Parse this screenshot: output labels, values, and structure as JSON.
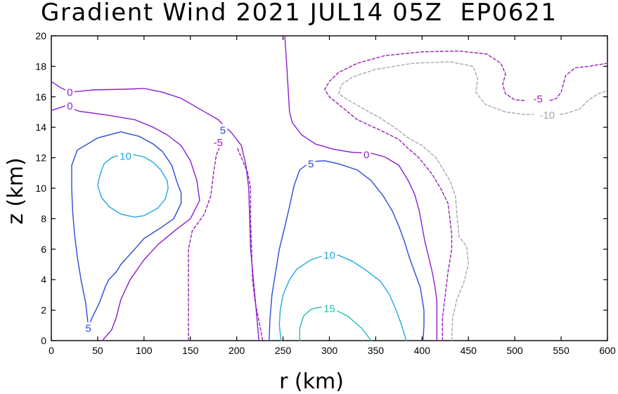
{
  "chart_data": {
    "type": "contour",
    "title": "Gradient Wind 2021 JUL14 05Z  EP0621",
    "xlabel": "r (km)",
    "ylabel": "z (km)",
    "xlim": [
      0,
      600
    ],
    "ylim": [
      0,
      20
    ],
    "xticks": [
      "0",
      "50",
      "100",
      "150",
      "200",
      "250",
      "300",
      "350",
      "400",
      "450",
      "500",
      "550",
      "600"
    ],
    "yticks": [
      "0",
      "2",
      "4",
      "6",
      "8",
      "10",
      "12",
      "14",
      "16",
      "18",
      "20"
    ],
    "grid": false,
    "colors": {
      "neg10": "#a8a8a8",
      "neg5": "#9a1fb8",
      "zero": "#8a1fd0",
      "pos5": "#2c4ad8",
      "pos10": "#22a8e0",
      "pos15": "#20c0b0"
    },
    "contours": [
      {
        "level": 0,
        "label": "0",
        "color_key": "zero",
        "dashed": false,
        "points": [
          [
            0,
            17
          ],
          [
            10,
            16.6
          ],
          [
            20,
            16.3
          ],
          [
            45,
            16.45
          ],
          [
            80,
            16.5
          ],
          [
            100,
            16.55
          ],
          [
            120,
            16.3
          ],
          [
            140,
            15.9
          ],
          [
            160,
            15.2
          ],
          [
            180,
            14.5
          ],
          [
            195,
            13.6
          ],
          [
            205,
            12.8
          ],
          [
            210,
            11.5
          ],
          [
            213,
            10
          ],
          [
            214,
            8
          ],
          [
            215,
            6
          ],
          [
            218,
            4
          ],
          [
            221,
            2
          ],
          [
            224,
            0
          ]
        ]
      },
      {
        "level": 0,
        "label": "0",
        "color_key": "zero",
        "dashed": false,
        "points": [
          [
            0,
            15.1
          ],
          [
            15,
            15.4
          ],
          [
            30,
            15.05
          ],
          [
            60,
            14.8
          ],
          [
            90,
            14.5
          ],
          [
            110,
            14
          ],
          [
            125,
            13.5
          ],
          [
            140,
            12.8
          ],
          [
            150,
            11.8
          ],
          [
            157,
            10.5
          ],
          [
            160,
            9.2
          ],
          [
            150,
            8
          ],
          [
            135,
            7.3
          ],
          [
            115,
            6.3
          ],
          [
            100,
            5.3
          ],
          [
            85,
            4
          ],
          [
            75,
            2.7
          ],
          [
            70,
            1.5
          ],
          [
            65,
            0.7
          ],
          [
            55,
            0
          ]
        ]
      },
      {
        "level": 0,
        "label": "0",
        "color_key": "zero",
        "dashed": false,
        "points": [
          [
            252,
            20
          ],
          [
            253,
            19
          ],
          [
            254,
            18
          ],
          [
            255,
            17
          ],
          [
            256,
            16
          ],
          [
            257,
            15
          ],
          [
            260,
            14.3
          ],
          [
            270,
            13.5
          ],
          [
            285,
            12.9
          ],
          [
            305,
            12.55
          ],
          [
            325,
            12.35
          ],
          [
            345,
            12.3
          ],
          [
            360,
            12.05
          ],
          [
            375,
            11.5
          ],
          [
            385,
            10.5
          ],
          [
            392,
            9.6
          ],
          [
            397,
            8.5
          ],
          [
            400,
            7.5
          ],
          [
            403,
            6.5
          ],
          [
            407,
            5.5
          ],
          [
            411,
            4.5
          ],
          [
            414,
            3.5
          ],
          [
            416,
            2.6
          ],
          [
            416,
            2
          ],
          [
            416,
            1
          ],
          [
            416,
            0
          ]
        ]
      },
      {
        "level": 5,
        "label": "5",
        "color_key": "pos5",
        "dashed": false,
        "points": [
          [
            40,
            0.9
          ],
          [
            37,
            2.5
          ],
          [
            32,
            4
          ],
          [
            28,
            5.5
          ],
          [
            25,
            7
          ],
          [
            23,
            8.5
          ],
          [
            22,
            10
          ],
          [
            22,
            11.5
          ],
          [
            28,
            12.5
          ],
          [
            50,
            13.3
          ],
          [
            75,
            13.7
          ],
          [
            95,
            13.4
          ],
          [
            110,
            12.9
          ],
          [
            120,
            12.4
          ],
          [
            130,
            11.5
          ],
          [
            135,
            10.5
          ],
          [
            140,
            9.7
          ],
          [
            140,
            9
          ],
          [
            132,
            8
          ],
          [
            118,
            7.4
          ],
          [
            100,
            6.7
          ],
          [
            90,
            6
          ],
          [
            75,
            5
          ],
          [
            70,
            4.5
          ],
          [
            62,
            4
          ],
          [
            58,
            3.5
          ],
          [
            52,
            2.5
          ],
          [
            44,
            1.5
          ],
          [
            40,
            0.9
          ]
        ]
      },
      {
        "level": 5,
        "label": "5",
        "color_key": "pos5",
        "dashed": false,
        "points": [
          [
            235,
            0
          ],
          [
            236,
            1.5
          ],
          [
            238,
            3
          ],
          [
            242,
            4.5
          ],
          [
            246,
            6
          ],
          [
            252,
            7.5
          ],
          [
            257,
            8.8
          ],
          [
            262,
            10.2
          ],
          [
            268,
            11.2
          ],
          [
            280,
            11.75
          ],
          [
            295,
            11.8
          ],
          [
            310,
            11.6
          ],
          [
            330,
            11.2
          ],
          [
            345,
            10.5
          ],
          [
            358,
            9.5
          ],
          [
            368,
            8.5
          ],
          [
            375,
            7.5
          ],
          [
            381,
            6.5
          ],
          [
            386,
            5.5
          ],
          [
            392,
            4.5
          ],
          [
            398,
            3.5
          ],
          [
            402,
            2
          ],
          [
            402,
            1
          ],
          [
            401,
            0
          ]
        ]
      },
      {
        "level": 10,
        "label": "10",
        "color_key": "pos10",
        "dashed": false,
        "points": [
          [
            50,
            10.2
          ],
          [
            53,
            11
          ],
          [
            57,
            11.6
          ],
          [
            65,
            12
          ],
          [
            75,
            12.2
          ],
          [
            85,
            12.25
          ],
          [
            100,
            12.05
          ],
          [
            110,
            11.7
          ],
          [
            118,
            11.2
          ],
          [
            125,
            10.5
          ],
          [
            126,
            10
          ],
          [
            123,
            9.3
          ],
          [
            115,
            8.7
          ],
          [
            100,
            8.2
          ],
          [
            90,
            8.1
          ],
          [
            75,
            8.3
          ],
          [
            62,
            8.8
          ],
          [
            54,
            9.4
          ],
          [
            50,
            10.2
          ]
        ]
      },
      {
        "level": 10,
        "label": "10",
        "color_key": "pos10",
        "dashed": false,
        "points": [
          [
            248,
            0
          ],
          [
            246,
            1
          ],
          [
            247,
            2
          ],
          [
            250,
            3
          ],
          [
            257,
            4
          ],
          [
            265,
            4.7
          ],
          [
            280,
            5.3
          ],
          [
            295,
            5.6
          ],
          [
            310,
            5.6
          ],
          [
            325,
            5.2
          ],
          [
            340,
            4.6
          ],
          [
            355,
            3.9
          ],
          [
            365,
            3
          ],
          [
            372,
            2
          ],
          [
            378,
            1
          ],
          [
            383,
            0
          ]
        ]
      },
      {
        "level": 15,
        "label": "15",
        "color_key": "pos15",
        "dashed": false,
        "points": [
          [
            268,
            0
          ],
          [
            268,
            0.8
          ],
          [
            272,
            1.6
          ],
          [
            280,
            2.05
          ],
          [
            290,
            2.2
          ],
          [
            305,
            2.05
          ],
          [
            320,
            1.6
          ],
          [
            335,
            0.8
          ],
          [
            345,
            0
          ]
        ]
      },
      {
        "level": -5,
        "label": "-5",
        "color_key": "neg5",
        "dashed": true,
        "points": [
          [
            148,
            0
          ],
          [
            148,
            3
          ],
          [
            148,
            6
          ],
          [
            152,
            7.2
          ],
          [
            165,
            8.3
          ],
          [
            172,
            9.5
          ],
          [
            175,
            11
          ],
          [
            178,
            12.2
          ],
          [
            181,
            12.6
          ]
        ]
      },
      {
        "level": -5,
        "label": "-5",
        "color_key": "neg5",
        "dashed": true,
        "points": [
          [
            201,
            12.6
          ],
          [
            205,
            12
          ],
          [
            212,
            11
          ],
          [
            215,
            10
          ],
          [
            215,
            8
          ],
          [
            216,
            6
          ],
          [
            217,
            4
          ],
          [
            220,
            2.5
          ],
          [
            225,
            1
          ],
          [
            228,
            0
          ]
        ]
      },
      {
        "level": -5,
        "label": "-5",
        "color_key": "neg5",
        "dashed": true,
        "points": [
          [
            422,
            0
          ],
          [
            422,
            1.5
          ],
          [
            425,
            3
          ],
          [
            428,
            4.5
          ],
          [
            432,
            6
          ],
          [
            432,
            7
          ],
          [
            430,
            8
          ],
          [
            428,
            9
          ],
          [
            420,
            10
          ],
          [
            410,
            11
          ],
          [
            395,
            12.1
          ],
          [
            385,
            12.6
          ],
          [
            375,
            13.2
          ],
          [
            355,
            13.8
          ],
          [
            330,
            14.5
          ],
          [
            310,
            15.5
          ],
          [
            300,
            16
          ],
          [
            295,
            16.5
          ],
          [
            300,
            17
          ],
          [
            310,
            17.6
          ],
          [
            330,
            18.2
          ],
          [
            360,
            18.7
          ],
          [
            400,
            18.95
          ],
          [
            440,
            19
          ],
          [
            470,
            18.8
          ],
          [
            485,
            18.2
          ],
          [
            490,
            17.5
          ],
          [
            487,
            16.8
          ],
          [
            490,
            16.2
          ],
          [
            500,
            15.8
          ],
          [
            510,
            15.75
          ]
        ]
      },
      {
        "level": -5,
        "label": "-5",
        "color_key": "neg5",
        "dashed": true,
        "points": [
          [
            538,
            15.75
          ],
          [
            545,
            15.9
          ],
          [
            550,
            16.3
          ],
          [
            555,
            17.4
          ],
          [
            565,
            17.9
          ],
          [
            580,
            18
          ],
          [
            600,
            18.2
          ]
        ]
      },
      {
        "level": -10,
        "label": "-10",
        "color_key": "neg10",
        "dashed": true,
        "points": [
          [
            432,
            0
          ],
          [
            433,
            1.5
          ],
          [
            438,
            2.8
          ],
          [
            445,
            3.8
          ],
          [
            450,
            5
          ],
          [
            448,
            6.2
          ],
          [
            440,
            6.8
          ],
          [
            438,
            8
          ],
          [
            436,
            9.5
          ],
          [
            430,
            10.5
          ],
          [
            425,
            11
          ],
          [
            415,
            12
          ],
          [
            400,
            12.8
          ],
          [
            385,
            13.3
          ],
          [
            370,
            14
          ],
          [
            355,
            14.6
          ],
          [
            340,
            15.1
          ],
          [
            320,
            15.8
          ],
          [
            310,
            16.2
          ],
          [
            313,
            16.8
          ],
          [
            325,
            17.3
          ],
          [
            350,
            17.8
          ],
          [
            390,
            18.2
          ],
          [
            430,
            18.3
          ],
          [
            455,
            18
          ],
          [
            460,
            17.2
          ],
          [
            458,
            16.3
          ],
          [
            468,
            15.5
          ],
          [
            490,
            15
          ],
          [
            510,
            14.85
          ],
          [
            520,
            14.85
          ]
        ]
      },
      {
        "level": -10,
        "label": "-10",
        "color_key": "neg10",
        "dashed": true,
        "points": [
          [
            549,
            14.85
          ],
          [
            555,
            14.9
          ],
          [
            570,
            15.2
          ],
          [
            580,
            15.8
          ],
          [
            590,
            16.2
          ],
          [
            600,
            16.4
          ]
        ]
      }
    ],
    "contour_labels": [
      {
        "text": "0",
        "r": 20,
        "z": 16.3,
        "color_key": "zero"
      },
      {
        "text": "0",
        "r": 20,
        "z": 15.4,
        "color_key": "zero"
      },
      {
        "text": "0",
        "r": 340,
        "z": 12.2,
        "color_key": "zero"
      },
      {
        "text": "5",
        "r": 185,
        "z": 13.8,
        "color_key": "pos5"
      },
      {
        "text": "5",
        "r": 40,
        "z": 0.8,
        "color_key": "pos5"
      },
      {
        "text": "5",
        "r": 280,
        "z": 11.6,
        "color_key": "pos5"
      },
      {
        "text": "10",
        "r": 80,
        "z": 12.1,
        "color_key": "pos10"
      },
      {
        "text": "10",
        "r": 300,
        "z": 5.6,
        "color_key": "pos10"
      },
      {
        "text": "15",
        "r": 300,
        "z": 2.1,
        "color_key": "pos15"
      },
      {
        "text": "-5",
        "r": 180,
        "z": 13.0,
        "color_key": "neg5"
      },
      {
        "text": "-5",
        "r": 525,
        "z": 15.85,
        "color_key": "neg5"
      },
      {
        "text": "-10",
        "r": 535,
        "z": 14.8,
        "color_key": "neg10"
      }
    ]
  }
}
